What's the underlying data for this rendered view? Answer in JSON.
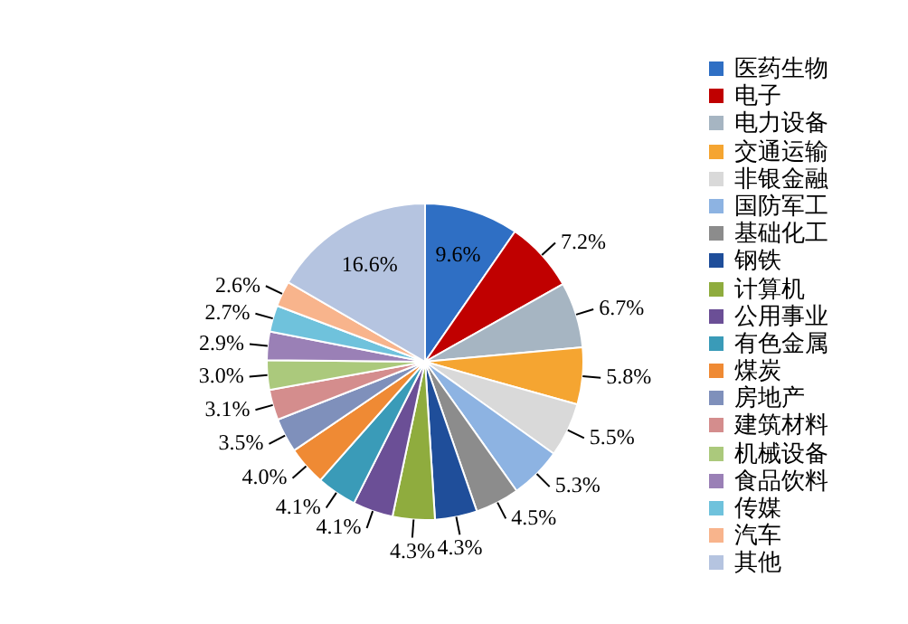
{
  "chart_data": {
    "type": "pie",
    "categories": [
      "医药生物",
      "电子",
      "电力设备",
      "交通运输",
      "非银金融",
      "国防军工",
      "基础化工",
      "钢铁",
      "计算机",
      "公用事业",
      "有色金属",
      "煤炭",
      "房地产",
      "建筑材料",
      "机械设备",
      "食品饮料",
      "传媒",
      "汽车",
      "其他"
    ],
    "values": [
      9.6,
      7.2,
      6.7,
      5.8,
      5.5,
      5.3,
      4.5,
      4.3,
      4.3,
      4.1,
      4.1,
      4.0,
      3.5,
      3.1,
      3.0,
      2.9,
      2.7,
      2.6,
      16.6
    ],
    "colors": [
      "#2f6fc4",
      "#c00000",
      "#a6b5c2",
      "#f5a531",
      "#d9d9d9",
      "#8db3e2",
      "#8c8c8c",
      "#1f4e9a",
      "#8fac3e",
      "#6b4f96",
      "#3a9bb8",
      "#ef8a34",
      "#7f90bb",
      "#d48d8d",
      "#abc97c",
      "#9a80b6",
      "#6fc2dc",
      "#f8b48c",
      "#b5c4e0"
    ],
    "value_labels": [
      "9.6%",
      "7.2%",
      "6.7%",
      "5.8%",
      "5.5%",
      "5.3%",
      "4.5%",
      "4.3%",
      "4.3%",
      "4.1%",
      "4.1%",
      "4.0%",
      "3.5%",
      "3.1%",
      "3.0%",
      "2.9%",
      "2.7%",
      "2.6%",
      "16.6%"
    ],
    "legend": "right"
  }
}
